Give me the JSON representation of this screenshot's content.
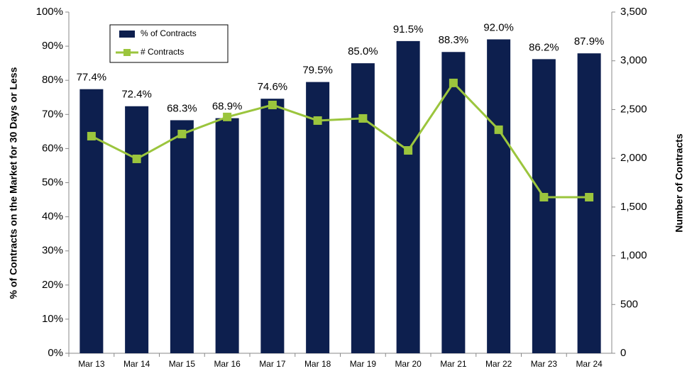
{
  "chart_data": {
    "type": "bar",
    "categories": [
      "Mar 13",
      "Mar 14",
      "Mar 15",
      "Mar 16",
      "Mar 17",
      "Mar 18",
      "Mar 19",
      "Mar 20",
      "Mar 21",
      "Mar 22",
      "Mar 23",
      "Mar 24"
    ],
    "series": [
      {
        "name": "% of Contracts",
        "type": "bar",
        "color": "#0d1f4e",
        "values": [
          77.4,
          72.4,
          68.3,
          68.9,
          74.6,
          79.5,
          85.0,
          91.5,
          88.3,
          92.0,
          86.2,
          87.9
        ],
        "value_labels": [
          "77.4%",
          "72.4%",
          "68.3%",
          "68.9%",
          "74.6%",
          "79.5%",
          "85.0%",
          "91.5%",
          "88.3%",
          "92.0%",
          "86.2%",
          "87.9%"
        ]
      },
      {
        "name": "# Contracts",
        "type": "line",
        "axis": "y2",
        "color": "#9bc53d",
        "values": [
          2227,
          1994,
          2249,
          2424,
          2547,
          2387,
          2409,
          2081,
          2773,
          2293,
          1601,
          1601
        ]
      }
    ],
    "y_label": "% of Contracts on the Market for 30 Days or Less",
    "y2_label": "Number of Contracts",
    "ylim": [
      0,
      100
    ],
    "yticks": [
      {
        "value": 0,
        "label": "0%"
      },
      {
        "value": 10,
        "label": "10%"
      },
      {
        "value": 20,
        "label": "20%"
      },
      {
        "value": 30,
        "label": "30%"
      },
      {
        "value": 40,
        "label": "40%"
      },
      {
        "value": 50,
        "label": "50%"
      },
      {
        "value": 60,
        "label": "60%"
      },
      {
        "value": 70,
        "label": "70%"
      },
      {
        "value": 80,
        "label": "80%"
      },
      {
        "value": 90,
        "label": "90%"
      },
      {
        "value": 100,
        "label": "100%"
      }
    ],
    "y2lim": [
      0,
      3500
    ],
    "y2ticks": [
      0,
      500,
      {
        "value": 1000,
        "label": "1,000"
      },
      {
        "value": 1500,
        "label": "1,500"
      },
      {
        "value": 2000,
        "label": "2,000"
      },
      {
        "value": 2500,
        "label": "2,500"
      },
      {
        "value": 3000,
        "label": "3,000"
      },
      {
        "value": 3500,
        "label": "3,500"
      }
    ],
    "legend": "upper left"
  }
}
